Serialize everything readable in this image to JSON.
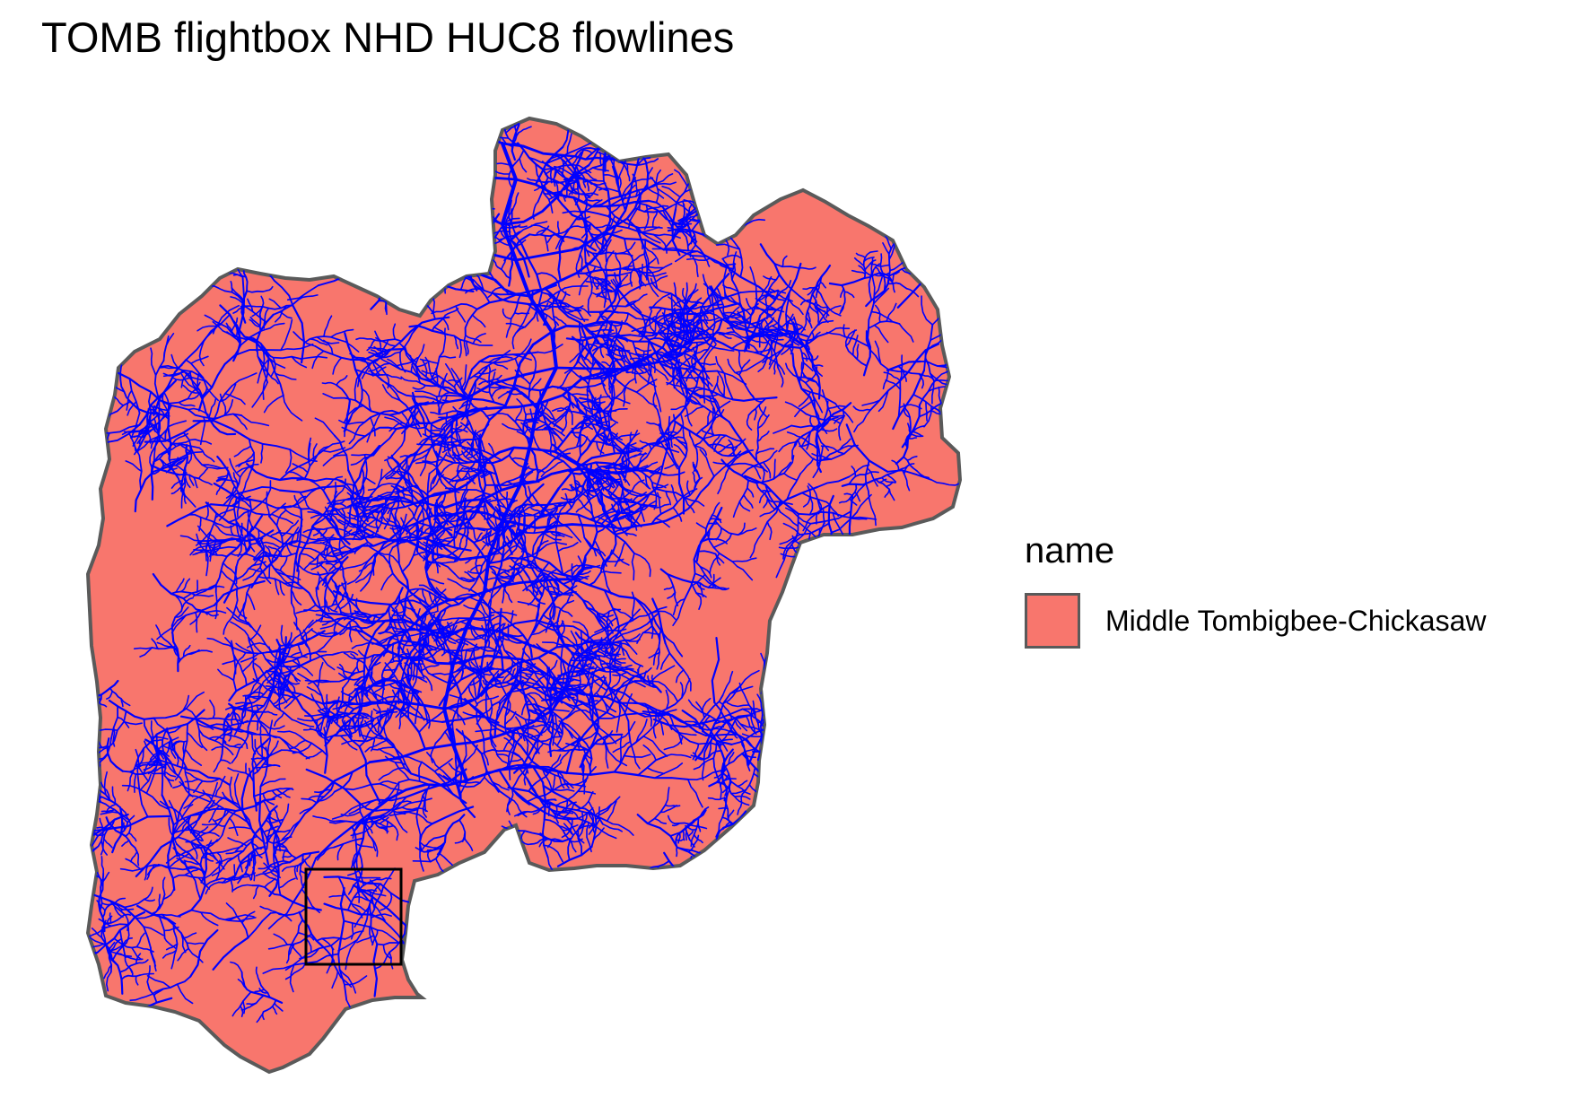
{
  "map": {
    "title": "TOMB flightbox NHD HUC8 flowlines",
    "layers": {
      "watershed": {
        "fill": "#f8766d",
        "outline": "#5a5a5a"
      },
      "flowlines": {
        "color": "#0000ff"
      },
      "flightbox": {
        "color": "#000000",
        "fill": "none"
      }
    },
    "legend": {
      "title": "name",
      "items": [
        {
          "label": "Middle Tombigbee-Chickasaw",
          "color": "#f8766d"
        }
      ]
    }
  }
}
